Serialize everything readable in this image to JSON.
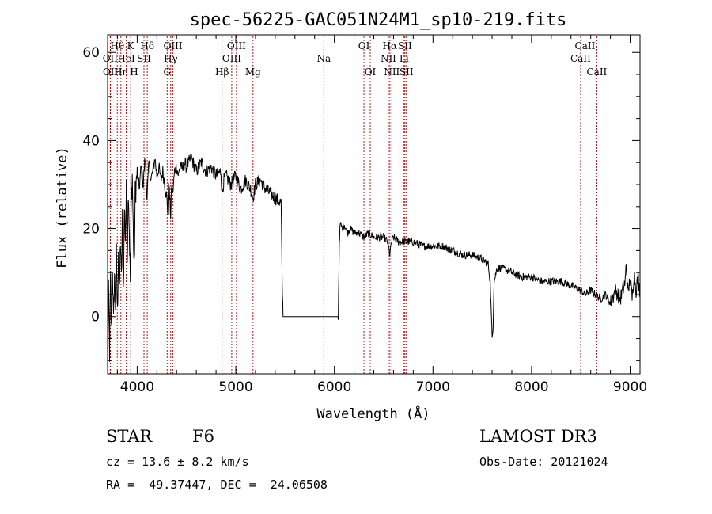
{
  "chart_data": {
    "type": "line",
    "title": "spec-56225-GAC051N24M1_sp10-219.fits",
    "xlabel": "Wavelength (Å)",
    "ylabel": "Flux (relative)",
    "xlim": [
      3700,
      9100
    ],
    "ylim": [
      -13,
      64
    ],
    "xticks": [
      4000,
      5000,
      6000,
      7000,
      8000,
      9000
    ],
    "xtick_labels": [
      "4000",
      "5000",
      "6000",
      "7000",
      "8000",
      "9000"
    ],
    "yticks": [
      0,
      20,
      40,
      60
    ],
    "ytick_labels": [
      "0",
      "20",
      "40",
      "60"
    ],
    "line_color": "#000000",
    "marker_color": "#aa0000",
    "spectral_lines": [
      {
        "label": "OII",
        "wavelength": 3727,
        "row": 1
      },
      {
        "label": "OII",
        "wavelength": 3729,
        "row": 2
      },
      {
        "label": "Hθ",
        "wavelength": 3798,
        "row": 0
      },
      {
        "label": "Hη",
        "wavelength": 3835,
        "row": 2
      },
      {
        "label": "HeI",
        "wavelength": 3889,
        "row": 1
      },
      {
        "label": "K",
        "wavelength": 3934,
        "row": 0
      },
      {
        "label": "H",
        "wavelength": 3969,
        "row": 2
      },
      {
        "label": "SII",
        "wavelength": 4069,
        "row": 1
      },
      {
        "label": "Hδ",
        "wavelength": 4102,
        "row": 0
      },
      {
        "label": "G",
        "wavelength": 4304,
        "row": 2
      },
      {
        "label": "Hγ",
        "wavelength": 4340,
        "row": 1
      },
      {
        "label": "OIII",
        "wavelength": 4363,
        "row": 0
      },
      {
        "label": "Hβ",
        "wavelength": 4861,
        "row": 2
      },
      {
        "label": "OIII",
        "wavelength": 4959,
        "row": 1
      },
      {
        "label": "OIII",
        "wavelength": 5007,
        "row": 0
      },
      {
        "label": "Mg",
        "wavelength": 5175,
        "row": 2
      },
      {
        "label": "Na",
        "wavelength": 5893,
        "row": 1
      },
      {
        "label": "OI",
        "wavelength": 6300,
        "row": 0
      },
      {
        "label": "OI",
        "wavelength": 6364,
        "row": 2
      },
      {
        "label": "NII",
        "wavelength": 6548,
        "row": 1
      },
      {
        "label": "Hα",
        "wavelength": 6563,
        "row": 0
      },
      {
        "label": "NII",
        "wavelength": 6583,
        "row": 2
      },
      {
        "label": "Li",
        "wavelength": 6707,
        "row": 1
      },
      {
        "label": "SII",
        "wavelength": 6716,
        "row": 0
      },
      {
        "label": "SII",
        "wavelength": 6731,
        "row": 2
      },
      {
        "label": "CaII",
        "wavelength": 8498,
        "row": 1
      },
      {
        "label": "CaII",
        "wavelength": 8542,
        "row": 0
      },
      {
        "label": "CaII",
        "wavelength": 8662,
        "row": 2
      }
    ],
    "spectrum": [
      [
        3700,
        -10
      ],
      [
        3710,
        5
      ],
      [
        3720,
        -8
      ],
      [
        3730,
        8
      ],
      [
        3740,
        -4
      ],
      [
        3750,
        12
      ],
      [
        3760,
        -2
      ],
      [
        3770,
        10
      ],
      [
        3780,
        3
      ],
      [
        3790,
        14
      ],
      [
        3800,
        0
      ],
      [
        3810,
        16
      ],
      [
        3820,
        4
      ],
      [
        3830,
        18
      ],
      [
        3840,
        8
      ],
      [
        3850,
        22
      ],
      [
        3860,
        6
      ],
      [
        3870,
        25
      ],
      [
        3880,
        18
      ],
      [
        3890,
        28
      ],
      [
        3900,
        14
      ],
      [
        3910,
        30
      ],
      [
        3920,
        20
      ],
      [
        3930,
        8
      ],
      [
        3940,
        26
      ],
      [
        3950,
        32
      ],
      [
        3960,
        20
      ],
      [
        3970,
        10
      ],
      [
        3980,
        28
      ],
      [
        3990,
        30
      ],
      [
        4000,
        33
      ],
      [
        4020,
        29
      ],
      [
        4040,
        34
      ],
      [
        4060,
        30
      ],
      [
        4080,
        36
      ],
      [
        4100,
        27
      ],
      [
        4120,
        35
      ],
      [
        4140,
        31
      ],
      [
        4160,
        33
      ],
      [
        4180,
        36
      ],
      [
        4200,
        32
      ],
      [
        4220,
        34
      ],
      [
        4240,
        31
      ],
      [
        4260,
        33
      ],
      [
        4280,
        30
      ],
      [
        4300,
        27
      ],
      [
        4310,
        24
      ],
      [
        4320,
        31
      ],
      [
        4330,
        27
      ],
      [
        4340,
        23
      ],
      [
        4350,
        30
      ],
      [
        4360,
        28
      ],
      [
        4380,
        33
      ],
      [
        4400,
        34
      ],
      [
        4420,
        32
      ],
      [
        4440,
        35
      ],
      [
        4460,
        33
      ],
      [
        4480,
        35
      ],
      [
        4500,
        34
      ],
      [
        4550,
        36
      ],
      [
        4600,
        33
      ],
      [
        4650,
        35
      ],
      [
        4700,
        33
      ],
      [
        4750,
        34
      ],
      [
        4800,
        32
      ],
      [
        4850,
        33
      ],
      [
        4861,
        28
      ],
      [
        4880,
        31
      ],
      [
        4900,
        32
      ],
      [
        4950,
        30
      ],
      [
        5000,
        32
      ],
      [
        5050,
        29
      ],
      [
        5100,
        31
      ],
      [
        5150,
        29
      ],
      [
        5175,
        27
      ],
      [
        5200,
        30
      ],
      [
        5250,
        31
      ],
      [
        5300,
        29
      ],
      [
        5350,
        28
      ],
      [
        5400,
        27
      ],
      [
        5450,
        26
      ],
      [
        5460,
        26
      ],
      [
        5470,
        8
      ],
      [
        5480,
        0
      ],
      [
        5700,
        0
      ],
      [
        6000,
        0
      ],
      [
        6040,
        0
      ],
      [
        6050,
        17
      ],
      [
        6060,
        21
      ],
      [
        6080,
        20
      ],
      [
        6100,
        21
      ],
      [
        6130,
        19
      ],
      [
        6160,
        20
      ],
      [
        6200,
        19
      ],
      [
        6250,
        19
      ],
      [
        6300,
        18
      ],
      [
        6350,
        19
      ],
      [
        6400,
        18
      ],
      [
        6450,
        18
      ],
      [
        6500,
        18
      ],
      [
        6540,
        17
      ],
      [
        6563,
        14
      ],
      [
        6580,
        17
      ],
      [
        6600,
        18
      ],
      [
        6650,
        17
      ],
      [
        6700,
        17
      ],
      [
        6750,
        17
      ],
      [
        6800,
        17
      ],
      [
        6900,
        16
      ],
      [
        7000,
        16
      ],
      [
        7100,
        16
      ],
      [
        7200,
        15
      ],
      [
        7300,
        14
      ],
      [
        7400,
        14
      ],
      [
        7500,
        13
      ],
      [
        7560,
        12
      ],
      [
        7580,
        8
      ],
      [
        7600,
        -5
      ],
      [
        7610,
        -2
      ],
      [
        7620,
        8
      ],
      [
        7650,
        11
      ],
      [
        7700,
        11
      ],
      [
        7800,
        10
      ],
      [
        7900,
        9
      ],
      [
        8000,
        9
      ],
      [
        8100,
        8
      ],
      [
        8200,
        8
      ],
      [
        8300,
        8
      ],
      [
        8400,
        7
      ],
      [
        8500,
        6
      ],
      [
        8540,
        5
      ],
      [
        8600,
        6
      ],
      [
        8650,
        5
      ],
      [
        8700,
        4
      ],
      [
        8750,
        5
      ],
      [
        8800,
        3
      ],
      [
        8850,
        6
      ],
      [
        8900,
        4
      ],
      [
        8950,
        8
      ],
      [
        8960,
        12
      ],
      [
        8980,
        5
      ],
      [
        9000,
        9
      ],
      [
        9020,
        4
      ],
      [
        9040,
        10
      ],
      [
        9060,
        6
      ],
      [
        9080,
        9
      ],
      [
        9100,
        5
      ]
    ]
  },
  "footer": {
    "object_type": "STAR",
    "subclass": "F6",
    "survey": "LAMOST DR3",
    "redshift": "cz = 13.6 ± 8.2 km/s",
    "obs_date": "Obs-Date: 20121024",
    "coords": "RA =  49.37447, DEC =  24.06508"
  }
}
